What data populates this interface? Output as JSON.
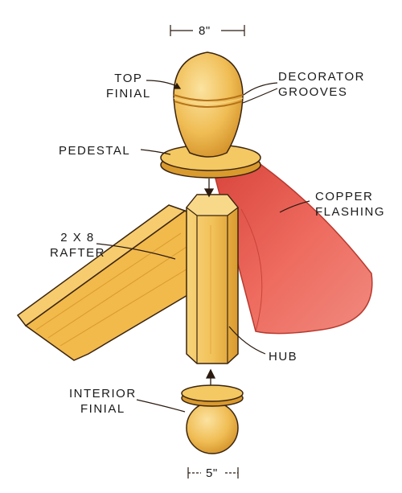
{
  "diagram": {
    "labels": {
      "top_finial": [
        "TOP",
        "FINIAL"
      ],
      "decorator_grooves": [
        "DECORATOR",
        "GROOVES"
      ],
      "pedestal": "PEDESTAL",
      "copper_flashing": [
        "COPPER",
        "FLASHING"
      ],
      "rafter": [
        "2 X 8",
        "RAFTER"
      ],
      "hub": "HUB",
      "interior_finial": [
        "INTERIOR",
        "FINIAL"
      ]
    },
    "dimensions": {
      "top_width": "8\"",
      "bottom_width": "5\""
    }
  },
  "colors": {
    "wood": "#f2c25a",
    "wood_dark": "#d99a2e",
    "wood_shadow": "#c27f1d",
    "copper": "#e85a4f",
    "copper_dark": "#c23a33",
    "line": "#2a1a10"
  }
}
